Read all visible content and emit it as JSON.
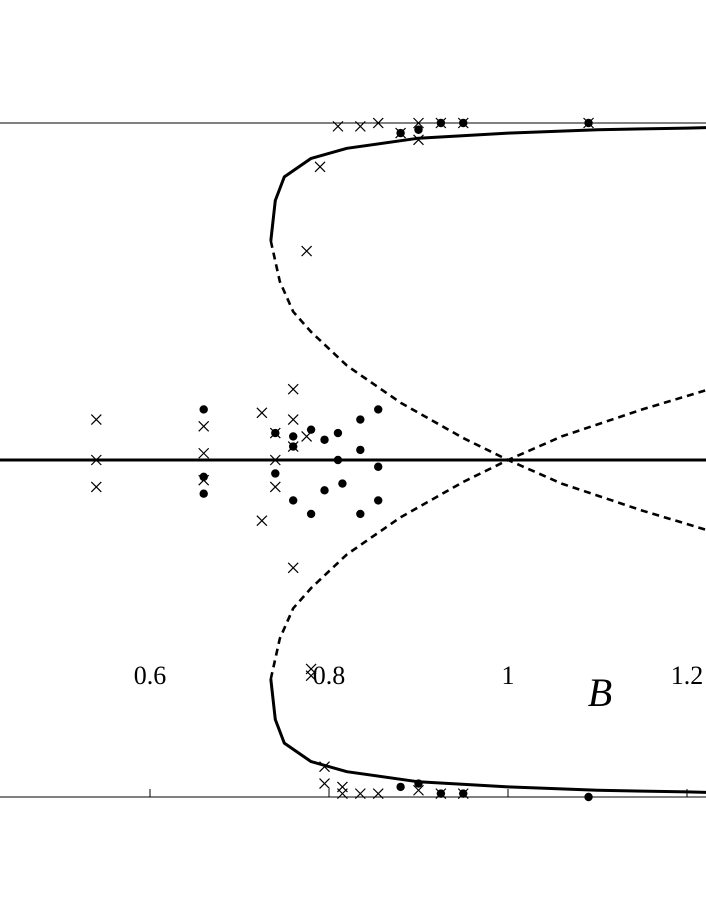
{
  "chart_data": {
    "type": "scatter",
    "title": "",
    "xlabel": "B",
    "ylabel": "",
    "xlim": [
      0.2,
      1.25
    ],
    "ylim": [
      -1.1,
      1.1
    ],
    "xticks": [
      {
        "value": 0.6,
        "label": "0.6"
      },
      {
        "value": 0.8,
        "label": "0.8"
      },
      {
        "value": 1,
        "label": "1"
      },
      {
        "value": 1.2,
        "label": "1.2"
      }
    ],
    "reference_lines_y": [
      1.0,
      -1.0
    ],
    "grid": false,
    "legend": "none",
    "curves": [
      {
        "name": "",
        "style": "solid",
        "points": [
          [
            0.2,
            0
          ],
          [
            1.25,
            0
          ]
        ]
      },
      {
        "name": "",
        "style": "solid",
        "points": [
          [
            0.735,
            0.65
          ],
          [
            0.74,
            0.77
          ],
          [
            0.75,
            0.84
          ],
          [
            0.78,
            0.895
          ],
          [
            0.82,
            0.925
          ],
          [
            0.9,
            0.955
          ],
          [
            1.0,
            0.97
          ],
          [
            1.1,
            0.98
          ],
          [
            1.2,
            0.985
          ],
          [
            1.25,
            0.988
          ]
        ]
      },
      {
        "name": "",
        "style": "dashed",
        "points": [
          [
            0.735,
            0.65
          ],
          [
            0.745,
            0.53
          ],
          [
            0.76,
            0.44
          ],
          [
            0.78,
            0.38
          ],
          [
            0.82,
            0.28
          ],
          [
            0.88,
            0.17
          ],
          [
            0.95,
            0.065
          ],
          [
            1.0,
            0.0
          ],
          [
            1.06,
            -0.07
          ],
          [
            1.15,
            -0.15
          ],
          [
            1.25,
            -0.23
          ]
        ]
      },
      {
        "name": "",
        "style": "solid",
        "points": [
          [
            0.735,
            -0.65
          ],
          [
            0.74,
            -0.77
          ],
          [
            0.75,
            -0.84
          ],
          [
            0.78,
            -0.895
          ],
          [
            0.82,
            -0.925
          ],
          [
            0.9,
            -0.955
          ],
          [
            1.0,
            -0.97
          ],
          [
            1.1,
            -0.98
          ],
          [
            1.2,
            -0.985
          ],
          [
            1.25,
            -0.988
          ]
        ]
      },
      {
        "name": "",
        "style": "dashed",
        "points": [
          [
            0.735,
            -0.65
          ],
          [
            0.745,
            -0.53
          ],
          [
            0.76,
            -0.44
          ],
          [
            0.78,
            -0.38
          ],
          [
            0.82,
            -0.28
          ],
          [
            0.88,
            -0.17
          ],
          [
            0.95,
            -0.065
          ],
          [
            1.0,
            0.0
          ],
          [
            1.06,
            0.07
          ],
          [
            1.15,
            0.15
          ],
          [
            1.25,
            0.23
          ]
        ]
      },
      {
        "name": "",
        "style": "dotted",
        "points": [
          [
            1.0,
            0
          ],
          [
            1.25,
            0
          ]
        ]
      }
    ],
    "series": [
      {
        "name": "",
        "marker": "x",
        "points": [
          [
            0.54,
            0.12
          ],
          [
            0.54,
            -0.08
          ],
          [
            0.54,
            0.0
          ],
          [
            0.66,
            0.1
          ],
          [
            0.66,
            0.02
          ],
          [
            0.66,
            -0.06
          ],
          [
            0.725,
            0.14
          ],
          [
            0.725,
            -0.18
          ],
          [
            0.74,
            0.08
          ],
          [
            0.74,
            0.0
          ],
          [
            0.74,
            -0.08
          ],
          [
            0.76,
            0.21
          ],
          [
            0.76,
            0.12
          ],
          [
            0.76,
            0.04
          ],
          [
            0.76,
            -0.32
          ],
          [
            0.775,
            0.07
          ],
          [
            0.78,
            -0.62
          ],
          [
            0.78,
            -0.64
          ],
          [
            0.775,
            0.62
          ],
          [
            0.795,
            -0.91
          ],
          [
            0.795,
            -0.96
          ],
          [
            0.79,
            0.87
          ],
          [
            0.81,
            0.99
          ],
          [
            0.815,
            -0.97
          ],
          [
            0.815,
            -0.99
          ],
          [
            0.835,
            0.99
          ],
          [
            0.835,
            -0.99
          ],
          [
            0.855,
            1.0
          ],
          [
            0.855,
            -0.99
          ],
          [
            0.88,
            0.97
          ],
          [
            0.9,
            1.0
          ],
          [
            0.9,
            0.95
          ],
          [
            0.9,
            -0.98
          ],
          [
            0.925,
            1.0
          ],
          [
            0.925,
            -0.99
          ],
          [
            0.95,
            1.0
          ],
          [
            0.95,
            -0.99
          ],
          [
            1.09,
            1.0
          ]
        ]
      },
      {
        "name": "",
        "marker": "dot",
        "points": [
          [
            0.66,
            0.15
          ],
          [
            0.66,
            -0.05
          ],
          [
            0.66,
            -0.1
          ],
          [
            0.74,
            0.08
          ],
          [
            0.74,
            -0.04
          ],
          [
            0.76,
            0.07
          ],
          [
            0.76,
            0.04
          ],
          [
            0.76,
            -0.12
          ],
          [
            0.78,
            0.09
          ],
          [
            0.78,
            -0.16
          ],
          [
            0.795,
            0.06
          ],
          [
            0.795,
            -0.09
          ],
          [
            0.81,
            0.08
          ],
          [
            0.81,
            0.0
          ],
          [
            0.815,
            -0.07
          ],
          [
            0.835,
            0.12
          ],
          [
            0.835,
            0.03
          ],
          [
            0.835,
            -0.16
          ],
          [
            0.855,
            0.15
          ],
          [
            0.855,
            -0.12
          ],
          [
            0.855,
            -0.02
          ],
          [
            0.88,
            0.97
          ],
          [
            0.88,
            -0.97
          ],
          [
            0.9,
            0.98
          ],
          [
            0.9,
            -0.96
          ],
          [
            0.925,
            1.0
          ],
          [
            0.925,
            -0.99
          ],
          [
            0.95,
            1.0
          ],
          [
            0.95,
            -0.99
          ],
          [
            1.09,
            1.0
          ],
          [
            1.09,
            -1.0
          ]
        ]
      }
    ]
  }
}
